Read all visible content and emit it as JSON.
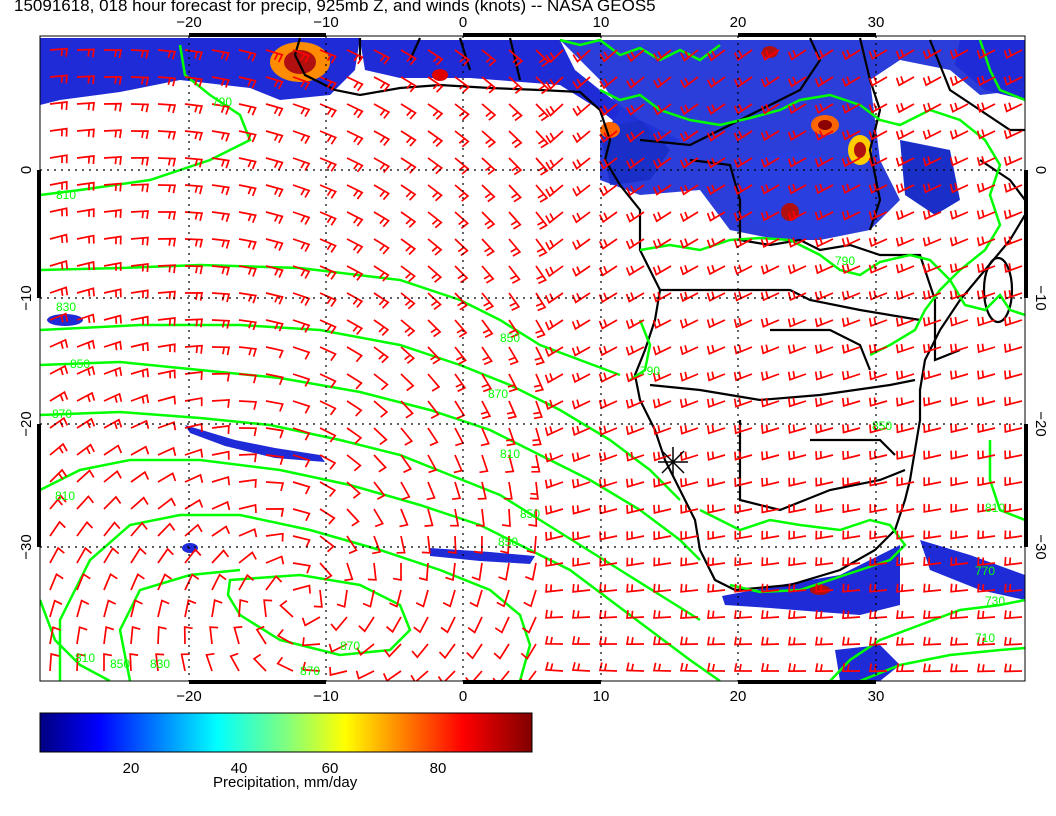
{
  "title": "15091618, 018 hour forecast for precip, 925mb Z, and winds (knots) -- NASA GEOS5",
  "map": {
    "lon_ticks": [
      "−20",
      "−10",
      "0",
      "10",
      "20",
      "30"
    ],
    "lat_ticks": [
      "0",
      "−10",
      "−20",
      "−30"
    ],
    "contour_labels": [
      "790",
      "810",
      "830",
      "850",
      "870",
      "850",
      "870",
      "810",
      "790",
      "810",
      "850",
      "850",
      "870",
      "810",
      "850",
      "830",
      "870",
      "790",
      "850",
      "810",
      "770",
      "730",
      "710"
    ],
    "colors": {
      "contours": "#00ff00",
      "wind_barbs": "#ff0000",
      "coastlines": "#000000",
      "precip_low": "#000080",
      "precip_high": "#800000"
    }
  },
  "colorbar": {
    "ticks": [
      "20",
      "40",
      "60",
      "80"
    ],
    "label": "Precipitation, mm/day"
  }
}
